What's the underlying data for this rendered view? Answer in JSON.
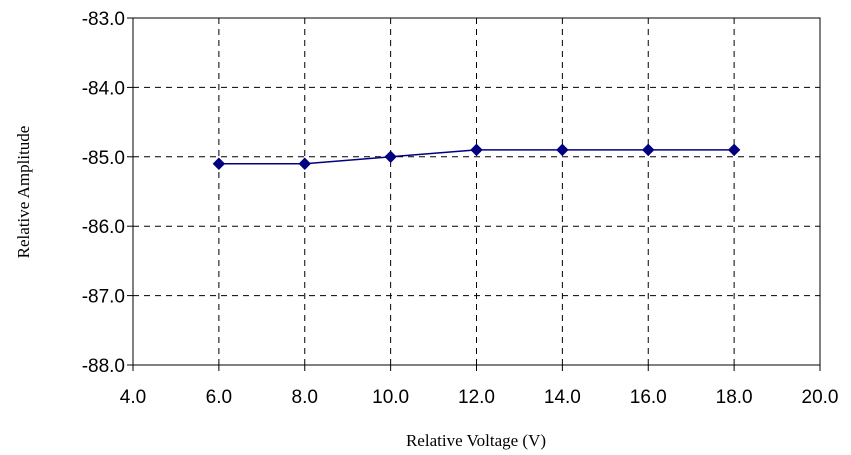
{
  "chart_data": {
    "type": "line",
    "title": "",
    "xlabel": "Relative Voltage (V)",
    "ylabel": "Relative Amplitude",
    "xlim": [
      4.0,
      20.0
    ],
    "ylim": [
      -88.0,
      -83.0
    ],
    "xticks": [
      "4.0",
      "6.0",
      "8.0",
      "10.0",
      "12.0",
      "14.0",
      "16.0",
      "18.0",
      "20.0"
    ],
    "yticks": [
      "-83.0",
      "-84.0",
      "-85.0",
      "-86.0",
      "-87.0",
      "-88.0"
    ],
    "grid": true,
    "legend": "none",
    "series": [
      {
        "color": "#000080",
        "marker": "diamond",
        "x": [
          6.0,
          8.0,
          10.0,
          12.0,
          14.0,
          16.0,
          18.0
        ],
        "y": [
          -85.1,
          -85.1,
          -85.0,
          -84.9,
          -84.9,
          -84.9,
          -84.9
        ]
      }
    ]
  }
}
